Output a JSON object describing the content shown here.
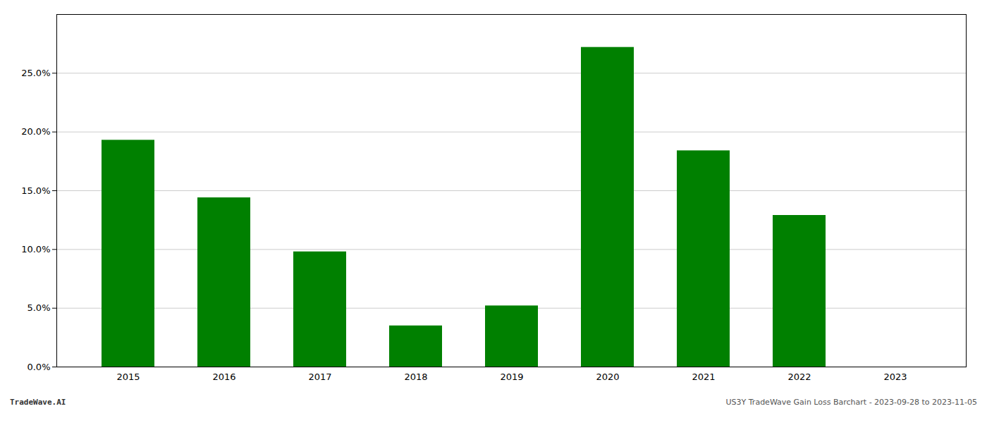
{
  "chart_data": {
    "type": "bar",
    "categories": [
      "2015",
      "2016",
      "2017",
      "2018",
      "2019",
      "2020",
      "2021",
      "2022",
      "2023"
    ],
    "values": [
      0.193,
      0.144,
      0.098,
      0.035,
      0.052,
      0.272,
      0.184,
      0.129,
      0.0
    ],
    "color": "#008000",
    "ylim": [
      0,
      0.3
    ],
    "yticks": [
      {
        "value": 0.0,
        "label": "0.0%"
      },
      {
        "value": 0.05,
        "label": "5.0%"
      },
      {
        "value": 0.1,
        "label": "10.0%"
      },
      {
        "value": 0.15,
        "label": "15.0%"
      },
      {
        "value": 0.2,
        "label": "20.0%"
      },
      {
        "value": 0.25,
        "label": "25.0%"
      }
    ],
    "grid": true,
    "annotations": [
      "TradeWave.AI",
      "US3Y TradeWave Gain Loss Barchart - 2023-09-28 to 2023-11-05"
    ]
  }
}
